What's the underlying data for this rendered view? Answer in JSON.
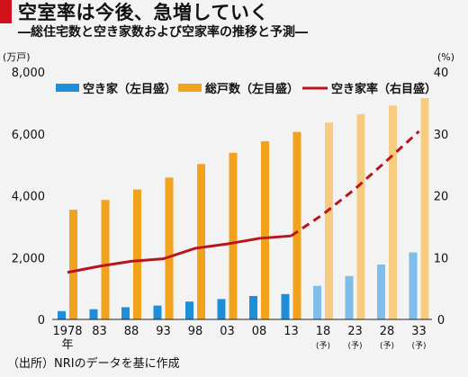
{
  "header": {
    "title": "空室率は今後、急増していく",
    "subtitle": "―総住宅数と空き家数および空家率の推移と予測―"
  },
  "footer": {
    "source": "（出所）NRIのデータを基に作成"
  },
  "colors": {
    "title_bar": "#d0101a",
    "vacant": "#1f8ed8",
    "vacant_forecast": "#7fbdea",
    "total": "#f2a31e",
    "total_forecast": "#f8cc80",
    "rate": "#b8141c",
    "background": "#f3f3f3"
  },
  "chart_data": {
    "type": "bar",
    "categories": [
      "1978",
      "83",
      "88",
      "93",
      "98",
      "03",
      "08",
      "13",
      "18",
      "23",
      "28",
      "33"
    ],
    "category_sublabels": [
      "年",
      "",
      "",
      "",
      "",
      "",
      "",
      "",
      "(予)",
      "(予)",
      "(予)",
      "(予)"
    ],
    "forecast_from_index": 8,
    "left_axis": {
      "unit_label": "(万戸)",
      "ylim": [
        0,
        8000
      ],
      "ticks": [
        "0",
        "2,000",
        "4,000",
        "6,000",
        "8,000"
      ],
      "tick_values": [
        0,
        2000,
        4000,
        6000,
        8000
      ]
    },
    "right_axis": {
      "unit_label": "(%)",
      "ylim": [
        0,
        40
      ],
      "ticks": [
        "0",
        "10",
        "20",
        "30",
        "40"
      ],
      "tick_values": [
        0,
        10,
        20,
        30,
        40
      ]
    },
    "series": [
      {
        "name": "空き家（左目盛）",
        "type": "bar",
        "axis": "left",
        "values": [
          268,
          330,
          394,
          448,
          576,
          659,
          757,
          820,
          1083,
          1404,
          1773,
          2166
        ]
      },
      {
        "name": "総戸数（左目盛）",
        "type": "bar",
        "axis": "left",
        "values": [
          3545,
          3861,
          4201,
          4588,
          5025,
          5389,
          5759,
          6063,
          6366,
          6637,
          6911,
          7157
        ]
      },
      {
        "name": "空き家率（右目盛）",
        "type": "line",
        "axis": "right",
        "values": [
          7.6,
          8.6,
          9.4,
          9.8,
          11.5,
          12.2,
          13.1,
          13.5,
          17.0,
          21.1,
          25.7,
          30.4
        ]
      }
    ],
    "legend_position": "top",
    "grid": false
  }
}
